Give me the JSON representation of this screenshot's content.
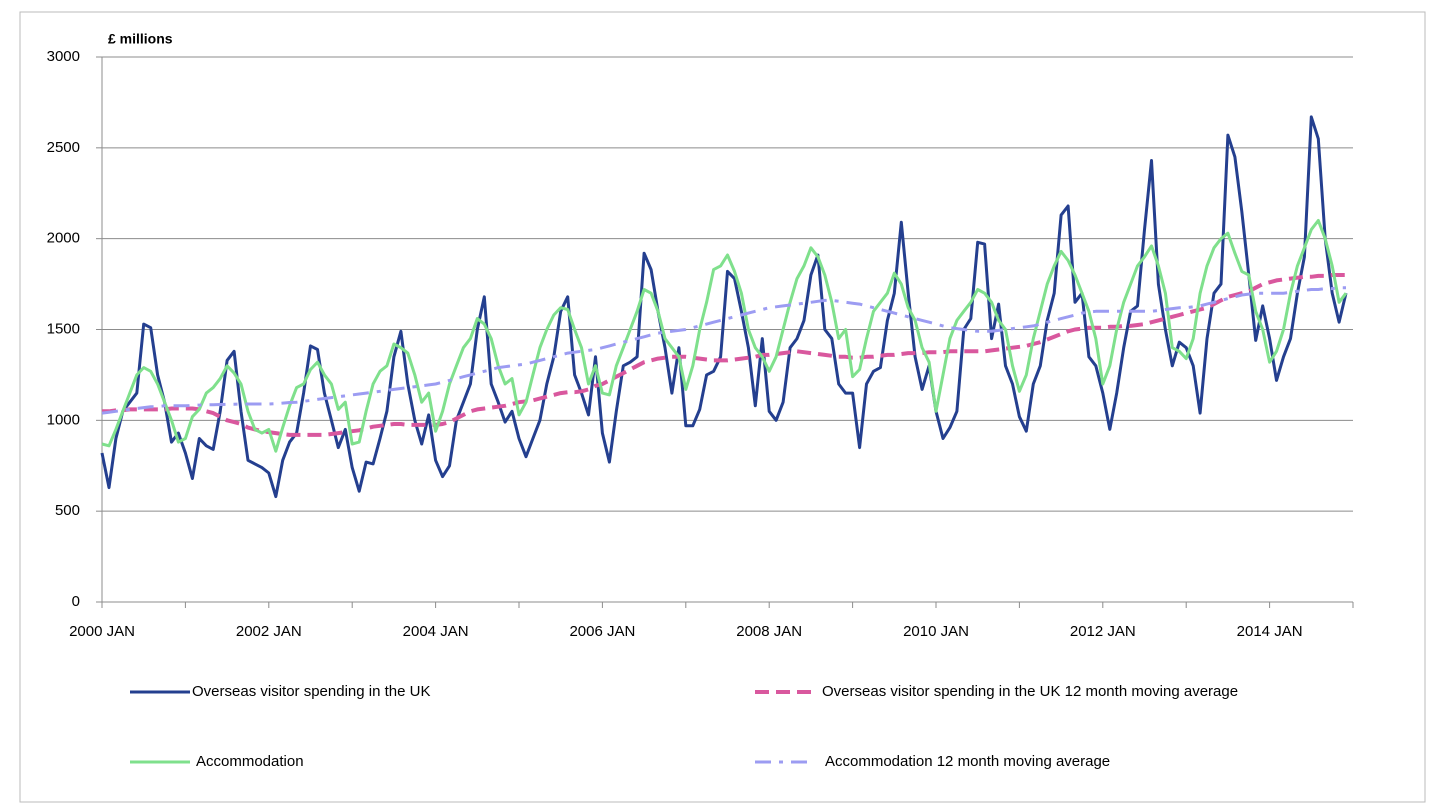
{
  "chart_data": {
    "type": "line",
    "y_label": "£ millions",
    "categories": [
      "2000 JAN",
      null,
      null,
      null,
      null,
      null,
      null,
      null,
      null,
      null,
      null,
      null,
      null,
      null,
      null,
      null,
      null,
      null,
      null,
      null,
      null,
      null,
      null,
      null,
      "2002 JAN",
      null,
      null,
      null,
      null,
      null,
      null,
      null,
      null,
      null,
      null,
      null,
      null,
      null,
      null,
      null,
      null,
      null,
      null,
      null,
      null,
      null,
      null,
      null,
      "2004 JAN",
      null,
      null,
      null,
      null,
      null,
      null,
      null,
      null,
      null,
      null,
      null,
      null,
      null,
      null,
      null,
      null,
      null,
      null,
      null,
      null,
      null,
      null,
      null,
      "2006 JAN",
      null,
      null,
      null,
      null,
      null,
      null,
      null,
      null,
      null,
      null,
      null,
      null,
      null,
      null,
      null,
      null,
      null,
      null,
      null,
      null,
      null,
      null,
      null,
      "2008 JAN",
      null,
      null,
      null,
      null,
      null,
      null,
      null,
      null,
      null,
      null,
      null,
      null,
      null,
      null,
      null,
      null,
      null,
      null,
      null,
      null,
      null,
      null,
      null,
      "2010 JAN",
      null,
      null,
      null,
      null,
      null,
      null,
      null,
      null,
      null,
      null,
      null,
      null,
      null,
      null,
      null,
      null,
      null,
      null,
      null,
      null,
      null,
      null,
      null,
      "2012 JAN",
      null,
      null,
      null,
      null,
      null,
      null,
      null,
      null,
      null,
      null,
      null,
      null,
      null,
      null,
      null,
      null,
      null,
      null,
      null,
      null,
      null,
      null,
      null,
      "2014 JAN",
      null,
      null,
      null,
      null,
      null,
      null,
      null,
      null,
      null,
      null,
      null
    ],
    "ylim": [
      0,
      3000
    ],
    "yticks": [
      0,
      500,
      1000,
      1500,
      2000,
      2500,
      3000
    ],
    "grid": true,
    "series": [
      {
        "name": "Overseas visitor spending in the UK",
        "color": "#243f8f",
        "style": "solid",
        "values": [
          820,
          630,
          900,
          1050,
          1100,
          1150,
          1530,
          1510,
          1250,
          1100,
          880,
          930,
          820,
          680,
          900,
          860,
          840,
          1050,
          1330,
          1380,
          1050,
          780,
          760,
          740,
          710,
          580,
          780,
          880,
          930,
          1150,
          1410,
          1390,
          1150,
          1000,
          850,
          950,
          740,
          610,
          770,
          760,
          900,
          1050,
          1350,
          1490,
          1200,
          1000,
          870,
          1030,
          780,
          690,
          750,
          1000,
          1100,
          1200,
          1500,
          1680,
          1200,
          1100,
          990,
          1050,
          900,
          800,
          900,
          1000,
          1200,
          1350,
          1600,
          1680,
          1250,
          1150,
          1030,
          1350,
          930,
          770,
          1050,
          1300,
          1320,
          1350,
          1920,
          1830,
          1600,
          1400,
          1150,
          1400,
          970,
          970,
          1060,
          1250,
          1270,
          1350,
          1820,
          1780,
          1600,
          1400,
          1080,
          1450,
          1050,
          1000,
          1100,
          1400,
          1450,
          1550,
          1800,
          1910,
          1500,
          1450,
          1200,
          1150,
          1150,
          850,
          1200,
          1270,
          1290,
          1550,
          1700,
          2090,
          1700,
          1350,
          1170,
          1300,
          1050,
          900,
          960,
          1050,
          1500,
          1560,
          1980,
          1970,
          1450,
          1640,
          1300,
          1200,
          1020,
          940,
          1200,
          1300,
          1550,
          1700,
          2130,
          2180,
          1650,
          1700,
          1350,
          1300,
          1150,
          950,
          1150,
          1400,
          1600,
          1630,
          2050,
          2430,
          1750,
          1500,
          1300,
          1430,
          1400,
          1300,
          1040,
          1450,
          1700,
          1750,
          2570,
          2450,
          2150,
          1800,
          1440,
          1630,
          1450,
          1220,
          1350,
          1450,
          1700,
          1900,
          2670,
          2550,
          2000,
          1700,
          1540,
          1700
        ]
      },
      {
        "name": "Overseas visitor spending in the UK 12 month moving average",
        "color": "#d9589e",
        "style": "dashed",
        "values": [
          1050,
          1050,
          1055,
          1055,
          1060,
          1060,
          1060,
          1060,
          1060,
          1060,
          1065,
          1065,
          1065,
          1065,
          1060,
          1050,
          1040,
          1020,
          1000,
          990,
          980,
          960,
          950,
          940,
          935,
          930,
          925,
          920,
          920,
          920,
          920,
          920,
          920,
          925,
          930,
          935,
          940,
          945,
          955,
          965,
          970,
          975,
          980,
          980,
          975,
          975,
          975,
          975,
          975,
          980,
          990,
          1010,
          1030,
          1050,
          1060,
          1065,
          1070,
          1075,
          1080,
          1090,
          1100,
          1105,
          1110,
          1120,
          1130,
          1140,
          1150,
          1155,
          1155,
          1160,
          1170,
          1190,
          1200,
          1220,
          1240,
          1260,
          1280,
          1300,
          1320,
          1330,
          1340,
          1345,
          1350,
          1350,
          1350,
          1345,
          1340,
          1335,
          1330,
          1330,
          1330,
          1335,
          1340,
          1345,
          1350,
          1360,
          1360,
          1365,
          1370,
          1375,
          1380,
          1375,
          1370,
          1365,
          1360,
          1355,
          1350,
          1350,
          1345,
          1345,
          1350,
          1350,
          1355,
          1360,
          1360,
          1365,
          1370,
          1370,
          1370,
          1375,
          1375,
          1375,
          1380,
          1380,
          1380,
          1380,
          1380,
          1380,
          1385,
          1390,
          1395,
          1400,
          1405,
          1410,
          1420,
          1430,
          1445,
          1460,
          1475,
          1490,
          1500,
          1505,
          1510,
          1510,
          1510,
          1515,
          1515,
          1520,
          1520,
          1525,
          1530,
          1540,
          1550,
          1560,
          1570,
          1580,
          1590,
          1600,
          1610,
          1620,
          1640,
          1660,
          1680,
          1690,
          1700,
          1710,
          1730,
          1750,
          1760,
          1770,
          1775,
          1780,
          1785,
          1790,
          1790,
          1795,
          1795,
          1800,
          1800,
          1800
        ]
      },
      {
        "name": "Accommodation",
        "color": "#7fe08c",
        "style": "solid",
        "values": [
          870,
          860,
          950,
          1050,
          1150,
          1250,
          1290,
          1270,
          1200,
          1100,
          1000,
          880,
          900,
          1020,
          1060,
          1150,
          1180,
          1230,
          1300,
          1260,
          1200,
          1050,
          950,
          930,
          950,
          830,
          960,
          1080,
          1180,
          1200,
          1280,
          1320,
          1250,
          1200,
          1060,
          1100,
          870,
          880,
          1050,
          1200,
          1270,
          1300,
          1420,
          1400,
          1370,
          1250,
          1100,
          1150,
          940,
          1050,
          1200,
          1300,
          1400,
          1450,
          1560,
          1530,
          1450,
          1300,
          1200,
          1230,
          1030,
          1100,
          1250,
          1400,
          1500,
          1580,
          1620,
          1610,
          1500,
          1400,
          1200,
          1300,
          1150,
          1140,
          1300,
          1400,
          1500,
          1600,
          1720,
          1700,
          1600,
          1450,
          1400,
          1350,
          1170,
          1300,
          1500,
          1650,
          1830,
          1850,
          1910,
          1820,
          1700,
          1500,
          1400,
          1350,
          1270,
          1350,
          1500,
          1650,
          1780,
          1850,
          1950,
          1900,
          1800,
          1650,
          1450,
          1500,
          1240,
          1280,
          1450,
          1600,
          1650,
          1700,
          1810,
          1750,
          1620,
          1550,
          1400,
          1320,
          1050,
          1250,
          1450,
          1550,
          1600,
          1650,
          1720,
          1700,
          1650,
          1550,
          1500,
          1300,
          1160,
          1250,
          1450,
          1600,
          1750,
          1850,
          1930,
          1880,
          1800,
          1700,
          1600,
          1450,
          1200,
          1300,
          1500,
          1650,
          1750,
          1850,
          1900,
          1960,
          1850,
          1700,
          1400,
          1380,
          1340,
          1450,
          1700,
          1850,
          1950,
          2000,
          2030,
          1920,
          1820,
          1800,
          1600,
          1500,
          1320,
          1380,
          1500,
          1700,
          1850,
          1950,
          2050,
          2100,
          2000,
          1850,
          1650,
          1700
        ]
      },
      {
        "name": "Accommodation  12 month moving average",
        "color": "#9c9cf2",
        "style": "dashdot",
        "values": [
          1040,
          1045,
          1050,
          1055,
          1060,
          1065,
          1070,
          1075,
          1075,
          1080,
          1080,
          1080,
          1080,
          1082,
          1084,
          1085,
          1086,
          1087,
          1088,
          1089,
          1090,
          1090,
          1090,
          1090,
          1090,
          1092,
          1095,
          1098,
          1100,
          1105,
          1110,
          1115,
          1120,
          1125,
          1130,
          1135,
          1140,
          1145,
          1150,
          1155,
          1160,
          1165,
          1170,
          1175,
          1180,
          1185,
          1190,
          1195,
          1200,
          1210,
          1220,
          1230,
          1240,
          1250,
          1260,
          1270,
          1280,
          1290,
          1295,
          1300,
          1305,
          1310,
          1320,
          1330,
          1340,
          1350,
          1360,
          1370,
          1375,
          1380,
          1385,
          1390,
          1400,
          1410,
          1420,
          1430,
          1440,
          1450,
          1460,
          1470,
          1480,
          1485,
          1490,
          1495,
          1500,
          1510,
          1520,
          1530,
          1540,
          1550,
          1560,
          1570,
          1580,
          1590,
          1600,
          1610,
          1620,
          1625,
          1630,
          1635,
          1640,
          1645,
          1650,
          1655,
          1660,
          1660,
          1655,
          1650,
          1645,
          1640,
          1630,
          1620,
          1610,
          1600,
          1590,
          1580,
          1570,
          1560,
          1550,
          1540,
          1530,
          1520,
          1510,
          1505,
          1500,
          1495,
          1490,
          1490,
          1490,
          1495,
          1500,
          1505,
          1510,
          1515,
          1520,
          1530,
          1540,
          1550,
          1560,
          1570,
          1580,
          1590,
          1595,
          1600,
          1600,
          1600,
          1600,
          1600,
          1600,
          1600,
          1600,
          1600,
          1605,
          1610,
          1615,
          1620,
          1620,
          1625,
          1630,
          1640,
          1650,
          1660,
          1670,
          1680,
          1690,
          1695,
          1700,
          1700,
          1700,
          1700,
          1700,
          1705,
          1710,
          1715,
          1720,
          1720,
          1725,
          1725,
          1730,
          1730
        ]
      }
    ]
  }
}
